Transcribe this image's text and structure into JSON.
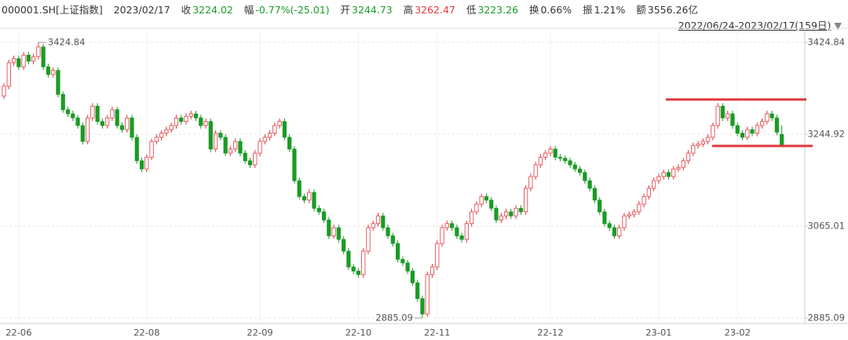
{
  "header": {
    "symbol": "000001.SH[上证指数]",
    "date": "2023/02/17",
    "close_label": "收",
    "change_label": "幅",
    "change": "-0.77%(-25.01)",
    "open_label": "开",
    "high_label": "高",
    "low_label": "低",
    "turnover_label": "换",
    "turnover": "0.66%",
    "amplitude_label": "振",
    "amplitude": "1.21%",
    "amount_label": "额",
    "amount": "3556.26亿",
    "range": "2022/06/24-2023/02/17(159日)"
  },
  "chart_data": {
    "type": "candlestick",
    "categories": [
      null,
      null,
      null,
      "22-06",
      null,
      null,
      null,
      null,
      null,
      null,
      null,
      null,
      null,
      null,
      null,
      null,
      null,
      null,
      null,
      null,
      null,
      null,
      null,
      null,
      null,
      null,
      null,
      null,
      null,
      "22-08",
      null,
      null,
      null,
      null,
      null,
      null,
      null,
      null,
      null,
      null,
      null,
      null,
      null,
      null,
      null,
      null,
      null,
      null,
      null,
      null,
      null,
      null,
      "22-09",
      null,
      null,
      null,
      null,
      null,
      null,
      null,
      null,
      null,
      null,
      null,
      null,
      null,
      null,
      null,
      null,
      null,
      null,
      null,
      "22-10",
      null,
      null,
      null,
      null,
      null,
      null,
      null,
      null,
      null,
      null,
      null,
      null,
      null,
      null,
      null,
      "22-11",
      null,
      null,
      null,
      null,
      null,
      null,
      null,
      null,
      null,
      null,
      null,
      null,
      null,
      null,
      null,
      null,
      null,
      null,
      null,
      null,
      null,
      null,
      "22-12",
      null,
      null,
      null,
      null,
      null,
      null,
      null,
      null,
      null,
      null,
      null,
      null,
      null,
      null,
      null,
      null,
      null,
      null,
      null,
      null,
      null,
      "23-01",
      null,
      null,
      null,
      null,
      null,
      null,
      null,
      null,
      null,
      null,
      null,
      null,
      null,
      null,
      null,
      "23-02",
      null,
      null,
      null,
      null,
      null,
      null,
      null,
      null,
      null
    ],
    "open": [
      3320,
      3339,
      3385,
      3393,
      3377,
      3400,
      3388,
      3397,
      3416,
      3377,
      3362,
      3370,
      3323,
      3293,
      3285,
      3277,
      3262,
      3231,
      3277,
      3300,
      3270,
      3262,
      3277,
      3293,
      3262,
      3254,
      3277,
      3239,
      3193,
      3177,
      3200,
      3231,
      3239,
      3247,
      3254,
      3262,
      3277,
      3270,
      3280,
      3285,
      3277,
      3262,
      3270,
      3216,
      3247,
      3239,
      3208,
      3216,
      3231,
      3208,
      3193,
      3185,
      3208,
      3231,
      3239,
      3247,
      3262,
      3270,
      3239,
      3216,
      3154,
      3123,
      3116,
      3131,
      3100,
      3093,
      3077,
      3046,
      3062,
      3039,
      3016,
      2985,
      2977,
      2970,
      3016,
      3062,
      3070,
      3085,
      3062,
      3046,
      3031,
      3000,
      2993,
      2977,
      2954,
      2923,
      2893,
      2970,
      2985,
      3031,
      3062,
      3070,
      3062,
      3046,
      3039,
      3070,
      3093,
      3108,
      3123,
      3116,
      3100,
      3077,
      3085,
      3093,
      3085,
      3100,
      3093,
      3139,
      3162,
      3185,
      3200,
      3208,
      3216,
      3200,
      3198,
      3193,
      3185,
      3177,
      3170,
      3154,
      3139,
      3116,
      3093,
      3070,
      3062,
      3046,
      3062,
      3085,
      3088,
      3093,
      3108,
      3123,
      3139,
      3154,
      3162,
      3170,
      3162,
      3177,
      3180,
      3193,
      3208,
      3223,
      3226,
      3231,
      3239,
      3262,
      3300,
      3277,
      3285,
      3262,
      3247,
      3239,
      3254,
      3247,
      3262,
      3270,
      3285,
      3277,
      3244.73
    ],
    "high": [
      3345,
      3391,
      3399,
      3399,
      3406,
      3406,
      3403,
      3424.84,
      3422,
      3383,
      3376,
      3376,
      3329,
      3299,
      3291,
      3283,
      3268,
      3283,
      3306,
      3306,
      3276,
      3283,
      3299,
      3299,
      3268,
      3283,
      3283,
      3245,
      3199,
      3206,
      3237,
      3245,
      3253,
      3260,
      3268,
      3283,
      3283,
      3286,
      3291,
      3291,
      3283,
      3276,
      3276,
      3253,
      3253,
      3245,
      3222,
      3237,
      3237,
      3214,
      3199,
      3214,
      3237,
      3245,
      3253,
      3268,
      3276,
      3276,
      3245,
      3222,
      3160,
      3129,
      3137,
      3137,
      3106,
      3099,
      3083,
      3068,
      3068,
      3045,
      3022,
      2991,
      2983,
      3022,
      3068,
      3076,
      3091,
      3091,
      3068,
      3052,
      3037,
      3006,
      2999,
      2983,
      2960,
      2929,
      2976,
      2991,
      3037,
      3068,
      3076,
      3076,
      3068,
      3052,
      3076,
      3099,
      3114,
      3129,
      3129,
      3122,
      3106,
      3091,
      3099,
      3099,
      3106,
      3106,
      3145,
      3168,
      3191,
      3206,
      3214,
      3222,
      3222,
      3206,
      3204,
      3199,
      3191,
      3183,
      3176,
      3160,
      3145,
      3122,
      3099,
      3076,
      3068,
      3068,
      3091,
      3094,
      3099,
      3114,
      3129,
      3145,
      3160,
      3168,
      3176,
      3176,
      3183,
      3186,
      3199,
      3214,
      3229,
      3232,
      3237,
      3245,
      3268,
      3306,
      3306,
      3291,
      3291,
      3268,
      3253,
      3260,
      3260,
      3268,
      3276,
      3291,
      3291,
      3283,
      3262.47
    ],
    "low": [
      3314,
      3333,
      3379,
      3371,
      3371,
      3382,
      3382,
      3391,
      3371,
      3356,
      3356,
      3317,
      3287,
      3279,
      3271,
      3256,
      3225,
      3225,
      3271,
      3264,
      3256,
      3256,
      3271,
      3256,
      3248,
      3248,
      3233,
      3187,
      3171,
      3171,
      3194,
      3225,
      3233,
      3241,
      3248,
      3256,
      3264,
      3264,
      3274,
      3271,
      3256,
      3256,
      3210,
      3210,
      3233,
      3202,
      3202,
      3210,
      3202,
      3187,
      3179,
      3179,
      3202,
      3225,
      3233,
      3241,
      3256,
      3233,
      3210,
      3148,
      3117,
      3110,
      3110,
      3094,
      3087,
      3071,
      3040,
      3040,
      3033,
      3010,
      2979,
      2971,
      2964,
      2964,
      3010,
      3056,
      3064,
      3056,
      3040,
      3025,
      2994,
      2987,
      2971,
      2948,
      2917,
      2885.09,
      2887,
      2964,
      2979,
      3025,
      3056,
      3056,
      3040,
      3033,
      3033,
      3064,
      3087,
      3102,
      3110,
      3094,
      3071,
      3071,
      3079,
      3079,
      3079,
      3087,
      3087,
      3133,
      3156,
      3179,
      3194,
      3202,
      3194,
      3192,
      3187,
      3179,
      3171,
      3164,
      3148,
      3133,
      3110,
      3087,
      3064,
      3056,
      3040,
      3040,
      3056,
      3079,
      3082,
      3087,
      3102,
      3117,
      3133,
      3148,
      3156,
      3156,
      3156,
      3171,
      3174,
      3187,
      3202,
      3217,
      3220,
      3225,
      3233,
      3256,
      3271,
      3271,
      3256,
      3241,
      3233,
      3233,
      3241,
      3241,
      3256,
      3264,
      3271,
      3243,
      3223.26
    ],
    "close": [
      3339,
      3385,
      3393,
      3377,
      3400,
      3388,
      3397,
      3416,
      3377,
      3362,
      3370,
      3323,
      3293,
      3285,
      3277,
      3262,
      3231,
      3277,
      3300,
      3270,
      3262,
      3277,
      3293,
      3262,
      3254,
      3277,
      3239,
      3193,
      3177,
      3200,
      3231,
      3239,
      3247,
      3254,
      3262,
      3277,
      3270,
      3280,
      3285,
      3277,
      3262,
      3270,
      3216,
      3247,
      3239,
      3208,
      3216,
      3231,
      3208,
      3193,
      3185,
      3208,
      3231,
      3239,
      3247,
      3262,
      3270,
      3239,
      3216,
      3154,
      3123,
      3116,
      3131,
      3100,
      3093,
      3077,
      3046,
      3062,
      3039,
      3016,
      2985,
      2977,
      2970,
      3016,
      3062,
      3070,
      3085,
      3062,
      3046,
      3031,
      3000,
      2993,
      2977,
      2954,
      2923,
      2893,
      2970,
      2985,
      3031,
      3062,
      3070,
      3062,
      3046,
      3039,
      3070,
      3093,
      3108,
      3123,
      3116,
      3100,
      3077,
      3085,
      3093,
      3085,
      3100,
      3093,
      3139,
      3162,
      3185,
      3200,
      3208,
      3216,
      3200,
      3198,
      3193,
      3185,
      3177,
      3170,
      3154,
      3139,
      3116,
      3093,
      3070,
      3062,
      3046,
      3062,
      3085,
      3088,
      3093,
      3108,
      3123,
      3139,
      3154,
      3162,
      3170,
      3162,
      3177,
      3180,
      3193,
      3208,
      3223,
      3226,
      3231,
      3239,
      3262,
      3300,
      3277,
      3285,
      3262,
      3247,
      3239,
      3254,
      3247,
      3262,
      3270,
      3285,
      3277,
      3249.03,
      3224.02
    ],
    "up_color": "#e0393e",
    "down_color": "#1a9b25",
    "ylim": [
      2869.7,
      3446.4
    ],
    "yticks": [
      2885.09,
      3065.01,
      3244.92,
      3424.84
    ],
    "grid": true,
    "levels": [
      3313,
      3222
    ],
    "level_color": "#e0393e"
  }
}
